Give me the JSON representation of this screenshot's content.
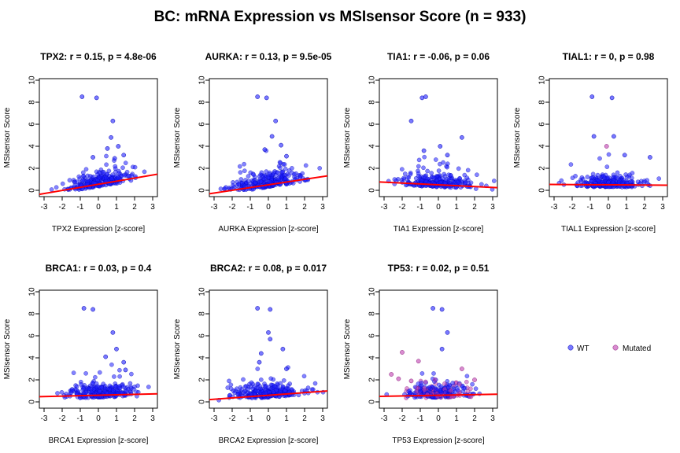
{
  "title": "BC: mRNA Expression vs MSIsensor Score (n = 933)",
  "colors": {
    "wt": "#1f1fff",
    "mutated": "#c040b0",
    "fit": "#ff0000"
  },
  "legend": {
    "wt": "WT",
    "mutated": "Mutated"
  },
  "chart_data": [
    {
      "type": "scatter",
      "gene": "TPX2",
      "title": "TPX2: r = 0.15, p = 4.8e-06",
      "xlabel": "TPX2 Expression [z-score]",
      "ylabel": "MSIsensor Score",
      "xlim": [
        -3,
        3
      ],
      "ylim": [
        0,
        10
      ],
      "xticks": [
        -3,
        -2,
        -1,
        0,
        1,
        2,
        3
      ],
      "yticks": [
        0,
        2,
        4,
        6,
        8,
        10
      ],
      "fit": {
        "intercept": 0.55,
        "slope": 0.28
      },
      "highlights": [
        [
          -0.9,
          8.5
        ],
        [
          -0.1,
          8.4
        ],
        [
          0.8,
          6.3
        ],
        [
          0.7,
          4.8
        ],
        [
          1.1,
          4.0
        ],
        [
          0.5,
          3.8
        ],
        [
          1.4,
          3.2
        ],
        [
          -0.3,
          3.0
        ],
        [
          0.9,
          2.9
        ]
      ],
      "mutated_points": []
    },
    {
      "type": "scatter",
      "gene": "AURKA",
      "title": "AURKA: r = 0.13, p = 9.5e-05",
      "xlabel": "AURKA Expression [z-score]",
      "ylabel": "MSIsensor Score",
      "xlim": [
        -3,
        3
      ],
      "ylim": [
        0,
        10
      ],
      "xticks": [
        -3,
        -2,
        -1,
        0,
        1,
        2,
        3
      ],
      "yticks": [
        0,
        2,
        4,
        6,
        8,
        10
      ],
      "fit": {
        "intercept": 0.5,
        "slope": 0.25
      },
      "highlights": [
        [
          -0.6,
          8.5
        ],
        [
          -0.1,
          8.4
        ],
        [
          0.4,
          6.3
        ],
        [
          0.2,
          4.9
        ],
        [
          0.7,
          4.1
        ],
        [
          -0.2,
          3.7
        ],
        [
          1.0,
          3.1
        ]
      ],
      "mutated_points": []
    },
    {
      "type": "scatter",
      "gene": "TIA1",
      "title": "TIA1: r = -0.06, p = 0.06",
      "xlabel": "TIA1 Expression [z-score]",
      "ylabel": "MSIsensor Score",
      "xlim": [
        -3,
        3
      ],
      "ylim": [
        0,
        10
      ],
      "xticks": [
        -3,
        -2,
        -1,
        0,
        1,
        2,
        3
      ],
      "yticks": [
        0,
        2,
        4,
        6,
        8,
        10
      ],
      "fit": {
        "intercept": 0.5,
        "slope": -0.08
      },
      "highlights": [
        [
          -0.9,
          8.4
        ],
        [
          -0.7,
          8.5
        ],
        [
          -1.5,
          6.3
        ],
        [
          1.3,
          4.8
        ],
        [
          0.1,
          4.0
        ],
        [
          -0.8,
          3.6
        ],
        [
          0.5,
          3.2
        ]
      ],
      "mutated_points": []
    },
    {
      "type": "scatter",
      "gene": "TIAL1",
      "title": "TIAL1: r = 0, p = 0.98",
      "xlabel": "TIAL1 Expression [z-score]",
      "ylabel": "MSIsensor Score",
      "xlim": [
        -3,
        3
      ],
      "ylim": [
        0,
        10
      ],
      "xticks": [
        -3,
        -2,
        -1,
        0,
        1,
        2,
        3
      ],
      "yticks": [
        0,
        2,
        4,
        6,
        8,
        10
      ],
      "fit": {
        "intercept": 0.5,
        "slope": -0.01
      },
      "highlights": [
        [
          -0.9,
          8.5
        ],
        [
          0.2,
          8.4
        ],
        [
          -0.8,
          4.9
        ],
        [
          0.3,
          4.9
        ],
        [
          -0.1,
          4.0
        ],
        [
          2.3,
          3.0
        ],
        [
          0.9,
          3.2
        ]
      ],
      "mutated_points": [
        [
          -0.1,
          4.0
        ]
      ]
    },
    {
      "type": "scatter",
      "gene": "BRCA1",
      "title": "BRCA1: r = 0.03, p = 0.4",
      "xlabel": "BRCA1 Expression [z-score]",
      "ylabel": "MSIsensor Score",
      "xlim": [
        -3,
        3
      ],
      "ylim": [
        0,
        10
      ],
      "xticks": [
        -3,
        -2,
        -1,
        0,
        1,
        2,
        3
      ],
      "yticks": [
        0,
        2,
        4,
        6,
        8,
        10
      ],
      "fit": {
        "intercept": 0.6,
        "slope": 0.04
      },
      "highlights": [
        [
          -0.8,
          8.5
        ],
        [
          -0.3,
          8.4
        ],
        [
          0.8,
          6.3
        ],
        [
          1.0,
          4.8
        ],
        [
          0.4,
          4.1
        ],
        [
          1.4,
          3.6
        ],
        [
          1.5,
          2.9
        ]
      ],
      "mutated_points": []
    },
    {
      "type": "scatter",
      "gene": "BRCA2",
      "title": "BRCA2: r = 0.08, p = 0.017",
      "xlabel": "BRCA2 Expression [z-score]",
      "ylabel": "MSIsensor Score",
      "xlim": [
        -3,
        3
      ],
      "ylim": [
        0,
        10
      ],
      "xticks": [
        -3,
        -2,
        -1,
        0,
        1,
        2,
        3
      ],
      "yticks": [
        0,
        2,
        4,
        6,
        8,
        10
      ],
      "fit": {
        "intercept": 0.6,
        "slope": 0.12
      },
      "highlights": [
        [
          -0.6,
          8.5
        ],
        [
          0.1,
          8.4
        ],
        [
          0.0,
          6.3
        ],
        [
          0.1,
          5.7
        ],
        [
          0.8,
          4.8
        ],
        [
          -0.4,
          4.4
        ],
        [
          -0.5,
          3.6
        ],
        [
          1.0,
          3.0
        ]
      ],
      "mutated_points": []
    },
    {
      "type": "scatter",
      "gene": "TP53",
      "title": "TP53: r = 0.02, p = 0.51",
      "xlabel": "TP53 Expression [z-score]",
      "ylabel": "MSIsensor Score",
      "xlim": [
        -3,
        3
      ],
      "ylim": [
        0,
        10
      ],
      "xticks": [
        -3,
        -2,
        -1,
        0,
        1,
        2,
        3
      ],
      "yticks": [
        0,
        2,
        4,
        6,
        8,
        10
      ],
      "fit": {
        "intercept": 0.6,
        "slope": 0.03
      },
      "highlights": [
        [
          -0.3,
          8.5
        ],
        [
          0.2,
          8.4
        ],
        [
          0.5,
          6.3
        ],
        [
          0.2,
          4.8
        ],
        [
          -2.0,
          4.5
        ],
        [
          -1.1,
          3.7
        ],
        [
          1.3,
          3.0
        ]
      ],
      "mutated_points": [
        [
          -2.0,
          4.5
        ],
        [
          -1.1,
          3.7
        ],
        [
          -2.6,
          2.5
        ],
        [
          -2.2,
          2.1
        ],
        [
          -1.5,
          1.9
        ],
        [
          1.3,
          3.0
        ],
        [
          2.0,
          2.0
        ]
      ],
      "legend": true
    }
  ]
}
